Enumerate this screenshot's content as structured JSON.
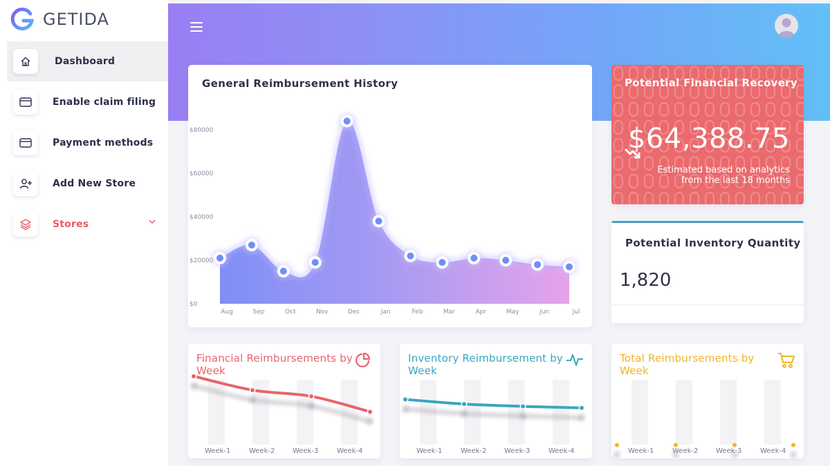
{
  "app": {
    "logo_text": "GETIDA"
  },
  "sidebar": {
    "items": [
      {
        "label": "Dashboard",
        "icon": "home-icon"
      },
      {
        "label": "Enable claim filing",
        "icon": "card-icon"
      },
      {
        "label": "Payment methods",
        "icon": "card-icon"
      },
      {
        "label": "Add New Store",
        "icon": "add-user-icon"
      },
      {
        "label": "Stores",
        "icon": "layers-icon"
      }
    ]
  },
  "header": {
    "menu_icon": "hamburger-icon",
    "avatar_icon": "user-avatar-icon"
  },
  "history_card": {
    "title": "General Reimbursement History"
  },
  "recovery_card": {
    "title": "Potential Financial Recovery",
    "value": "$64,388.75",
    "note_line1": "Estimated based on analytics",
    "note_line2": "from the last 18 months"
  },
  "inventory_qty_card": {
    "title": "Potential Inventory Quantity",
    "value": "1,820"
  },
  "small_cards": [
    {
      "title": "Financial Reimbursements by Week",
      "icon": "pie-chart-icon",
      "color": "#e8646a"
    },
    {
      "title": "Inventory Reimbursement by Week",
      "icon": "activity-icon",
      "color": "#3aa6bf"
    },
    {
      "title": "Total Reimbursements by Week",
      "icon": "cart-icon",
      "color": "#f0b429"
    }
  ],
  "colors": {
    "accent_red": "#ea6a6d",
    "accent_blue": "#4b9ec4",
    "chart_point": "#6f8ff5"
  },
  "chart_data": [
    {
      "type": "area",
      "title": "General Reimbursement History",
      "categories": [
        "Aug",
        "Sep",
        "Oct",
        "Nov",
        "Dec",
        "Jan",
        "Feb",
        "Mar",
        "Apr",
        "May",
        "Jun",
        "Jul"
      ],
      "values": [
        21000,
        27000,
        15000,
        19000,
        84000,
        38000,
        22000,
        19000,
        21000,
        20000,
        18000,
        17000
      ],
      "y_ticks": [
        "$0",
        "$20000",
        "$40000",
        "$60000",
        "$80000"
      ],
      "ylim": [
        0,
        90000
      ],
      "grid": false
    },
    {
      "type": "line",
      "title": "Financial Reimbursements by Week",
      "categories": [
        "Week-1",
        "Week-2",
        "Week-3",
        "Week-4"
      ],
      "values": [
        0.92,
        0.74,
        0.66,
        0.46
      ],
      "x_ticks": [
        "Week-1",
        "Week-2",
        "Week-3",
        "Week-4"
      ]
    },
    {
      "type": "line",
      "title": "Inventory Reimbursement by Week",
      "categories": [
        "Week-1",
        "Week-2",
        "Week-3",
        "Week-4"
      ],
      "values": [
        0.62,
        0.56,
        0.53,
        0.51
      ],
      "x_ticks": [
        "Week-1",
        "Week-2",
        "Week-3",
        "Week-4"
      ]
    },
    {
      "type": "line",
      "title": "Total Reimbursements by Week",
      "categories": [
        "Week-1",
        "Week-2",
        "Week-3",
        "Week-4"
      ],
      "values": [
        0.03,
        0.03,
        0.03,
        0.03
      ],
      "x_ticks": [
        "Week-1",
        "Week-2",
        "Week-3",
        "Week-4"
      ]
    }
  ]
}
